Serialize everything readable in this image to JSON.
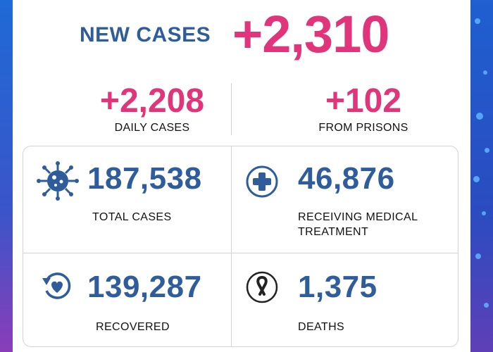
{
  "headline": {
    "label": "NEW CASES",
    "value": "+2,310"
  },
  "split": [
    {
      "value": "+2,208",
      "label": "DAILY CASES"
    },
    {
      "value": "+102",
      "label": "FROM PRISONS"
    }
  ],
  "stats": [
    {
      "icon": "virus-icon",
      "value": "187,538",
      "label": "TOTAL CASES"
    },
    {
      "icon": "medical-cross-icon",
      "value": "46,876",
      "label_line1": "RECEIVING MEDICAL",
      "label_line2": "TREATMENT"
    },
    {
      "icon": "heart-refresh-icon",
      "value": "139,287",
      "label": "RECOVERED"
    },
    {
      "icon": "ribbon-icon",
      "value": "1,375",
      "label": "DEATHS"
    }
  ],
  "colors": {
    "accent_pink": "#e0357a",
    "accent_blue": "#2f5d9c",
    "border": "#d3d3d3"
  }
}
